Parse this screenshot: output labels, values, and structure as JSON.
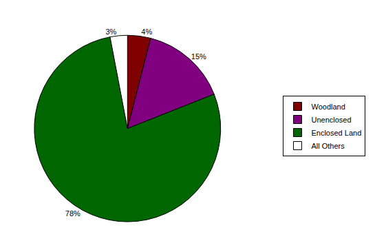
{
  "chart_data": {
    "type": "pie",
    "categories": [
      "Woodland",
      "Unenclosed",
      "Enclosed Land",
      "All Others"
    ],
    "values": [
      4,
      15,
      78,
      3
    ],
    "value_labels": [
      "4%",
      "15%",
      "78%",
      "3%"
    ],
    "colors": [
      "#800000",
      "#800080",
      "#006600",
      "#ffffff"
    ],
    "data_labels": true,
    "legend": "right"
  }
}
